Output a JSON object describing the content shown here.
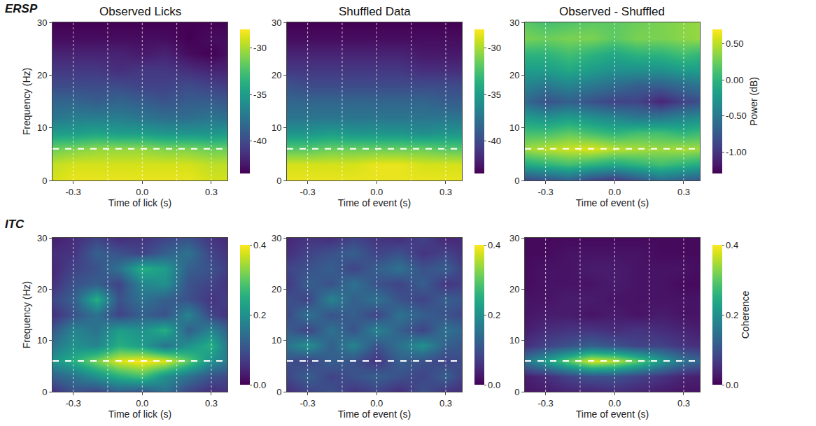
{
  "chart_data": [
    {
      "type": "heatmap",
      "row_label": "ERSP",
      "title": "Observed Licks",
      "x_label": "Time of lick (s)",
      "y_label": "Frequency (Hz)",
      "x": [
        -0.4,
        -0.3,
        -0.2,
        -0.1,
        0,
        0.1,
        0.2,
        0.3,
        0.4
      ],
      "y": [
        0,
        3,
        6,
        9,
        12,
        15,
        18,
        21,
        24,
        27,
        30
      ],
      "z": [
        [
          -29,
          -28.5,
          -28.5,
          -28.5,
          -28.5,
          -28.5,
          -28.5,
          -29,
          -29
        ],
        [
          -29.5,
          -29,
          -29,
          -29,
          -29,
          -29,
          -29,
          -29.5,
          -29.5
        ],
        [
          -31.5,
          -31,
          -30.5,
          -30.5,
          -30.5,
          -31,
          -31,
          -31.5,
          -31.5
        ],
        [
          -35,
          -35,
          -34.5,
          -35,
          -35,
          -35.5,
          -35.5,
          -35.5,
          -35
        ],
        [
          -37.5,
          -37,
          -37,
          -37,
          -37.5,
          -38,
          -38,
          -37.5,
          -38
        ],
        [
          -38.5,
          -38.5,
          -39,
          -38.5,
          -39,
          -39.5,
          -39,
          -39,
          -39.5
        ],
        [
          -40,
          -40,
          -40,
          -40,
          -40.5,
          -40.5,
          -40,
          -40.5,
          -41
        ],
        [
          -41,
          -41,
          -41,
          -41.5,
          -41,
          -41,
          -41.5,
          -42,
          -42
        ],
        [
          -42,
          -42,
          -42,
          -42,
          -42.5,
          -42,
          -43,
          -43.5,
          -42.5
        ],
        [
          -43,
          -43,
          -43,
          -43,
          -43,
          -43,
          -43.5,
          -43,
          -43
        ],
        [
          -43.5,
          -43.5,
          -43.5,
          -43.5,
          -43.5,
          -43.5,
          -43.5,
          -43.5,
          -43.5
        ]
      ],
      "zlim": [
        -43.5,
        -28
      ],
      "zticks": [
        -40,
        -35,
        -30
      ],
      "xlim": [
        -0.39,
        0.37
      ],
      "xticks": [
        -0.3,
        {
          "value": 0,
          "label": "0.0"
        },
        0.3
      ],
      "ylim": [
        0,
        30
      ],
      "yticks": [
        0,
        10,
        20,
        30
      ],
      "hline": 6,
      "vlines": [
        -0.3,
        -0.15,
        0,
        0.15,
        0.3
      ]
    },
    {
      "type": "heatmap",
      "title": "Shuffled Data",
      "x_label": "Time of event (s)",
      "x": [
        -0.4,
        -0.3,
        -0.2,
        -0.1,
        0,
        0.1,
        0.2,
        0.3,
        0.4
      ],
      "y": [
        0,
        3,
        6,
        9,
        12,
        15,
        18,
        21,
        24,
        27,
        30
      ],
      "z": [
        [
          -28.5,
          -28.5,
          -28.5,
          -28.5,
          -28.5,
          -28.5,
          -28.5,
          -28.5,
          -28.5
        ],
        [
          -29,
          -29,
          -29,
          -29,
          -28.5,
          -28.5,
          -29,
          -29,
          -29
        ],
        [
          -32,
          -32,
          -31.5,
          -31.5,
          -31.5,
          -31.5,
          -31.5,
          -32,
          -32
        ],
        [
          -35.5,
          -35.5,
          -35,
          -35.5,
          -35.5,
          -35.5,
          -36,
          -35.5,
          -35.5
        ],
        [
          -37.5,
          -37.5,
          -37.5,
          -37.5,
          -37.5,
          -37.5,
          -37.5,
          -37.5,
          -37.5
        ],
        [
          -38.5,
          -38.5,
          -38.5,
          -38.5,
          -38.5,
          -38.5,
          -38.5,
          -39,
          -39
        ],
        [
          -39.5,
          -40,
          -40,
          -40,
          -40,
          -40,
          -40,
          -40,
          -40
        ],
        [
          -41,
          -41,
          -41,
          -41,
          -41,
          -41,
          -41.5,
          -41.5,
          -41.5
        ],
        [
          -42,
          -42,
          -42,
          -42,
          -42,
          -42,
          -42.5,
          -42.5,
          -42.5
        ],
        [
          -43,
          -43,
          -43,
          -43,
          -43,
          -43,
          -43,
          -43,
          -43
        ],
        [
          -43.5,
          -43.5,
          -43.5,
          -43.5,
          -43.5,
          -43.5,
          -43.5,
          -43.5,
          -43.5
        ]
      ],
      "zlim": [
        -43.5,
        -28
      ],
      "zticks": [
        -40,
        -35,
        -30
      ],
      "xlim": [
        -0.39,
        0.37
      ],
      "xticks": [
        -0.3,
        {
          "value": 0,
          "label": "0.0"
        },
        0.3
      ],
      "ylim": [
        0,
        30
      ],
      "yticks": [
        0,
        10,
        20,
        30
      ],
      "hline": 6,
      "vlines": [
        -0.3,
        -0.15,
        0,
        0.15,
        0.3
      ]
    },
    {
      "type": "heatmap",
      "title": "Observed - Shuffled",
      "x_label": "Time of event (s)",
      "colorbar_title": "Power (dB)",
      "x": [
        -0.4,
        -0.3,
        -0.2,
        -0.1,
        0,
        0.1,
        0.2,
        0.3,
        0.4
      ],
      "y": [
        0,
        3,
        6,
        9,
        12,
        15,
        18,
        21,
        24,
        27,
        30
      ],
      "z": [
        [
          -0.9,
          -0.8,
          -0.7,
          -0.9,
          -1.0,
          -0.8,
          -0.6,
          -0.7,
          -0.8
        ],
        [
          -0.1,
          0.0,
          0.1,
          0.0,
          -0.1,
          0.0,
          0.1,
          0.0,
          -0.1
        ],
        [
          0.4,
          0.5,
          0.55,
          0.6,
          0.5,
          0.45,
          0.4,
          0.45,
          0.4
        ],
        [
          0.1,
          0.1,
          0.2,
          0.1,
          0.0,
          0.1,
          0.1,
          0.0,
          0.1
        ],
        [
          -0.2,
          -0.3,
          -0.2,
          -0.3,
          -0.4,
          -0.5,
          -0.5,
          -0.4,
          -0.3
        ],
        [
          -0.6,
          -0.8,
          -0.7,
          -0.8,
          -0.9,
          -0.9,
          -1.1,
          -0.9,
          -0.8
        ],
        [
          -0.4,
          -0.5,
          -0.4,
          -0.5,
          -0.6,
          -0.7,
          -0.7,
          -0.6,
          -0.5
        ],
        [
          -0.2,
          -0.2,
          -0.1,
          -0.2,
          -0.3,
          -0.3,
          -0.3,
          -0.2,
          -0.2
        ],
        [
          0.0,
          0.0,
          0.1,
          0.0,
          -0.1,
          0.0,
          0.0,
          0.1,
          0.0
        ],
        [
          0.3,
          0.25,
          0.3,
          0.3,
          0.2,
          0.3,
          0.3,
          0.35,
          0.4
        ],
        [
          0.2,
          0.1,
          0.15,
          0.2,
          0.2,
          0.25,
          0.3,
          0.35,
          0.4
        ]
      ],
      "zlim": [
        -1.3,
        0.7
      ],
      "zticks": [
        {
          "value": -1,
          "label": "-1.00"
        },
        {
          "value": -0.5,
          "label": "-0.50"
        },
        {
          "value": 0,
          "label": "0.00"
        },
        {
          "value": 0.5,
          "label": "0.50"
        }
      ],
      "xlim": [
        -0.39,
        0.37
      ],
      "xticks": [
        -0.3,
        {
          "value": 0,
          "label": "0.0"
        },
        0.3
      ],
      "ylim": [
        0,
        30
      ],
      "yticks": [
        0,
        10,
        20,
        30
      ],
      "hline": 6,
      "vlines": [
        -0.3,
        -0.15,
        0,
        0.15,
        0.3
      ]
    },
    {
      "type": "heatmap",
      "row_label": "ITC",
      "x_label": "Time of lick (s)",
      "y_label": "Frequency (Hz)",
      "x": [
        -0.4,
        -0.3,
        -0.2,
        -0.1,
        0,
        0.1,
        0.2,
        0.3,
        0.4
      ],
      "y": [
        0,
        3,
        6,
        9,
        12,
        15,
        18,
        21,
        24,
        27,
        30
      ],
      "z": [
        [
          0.05,
          0.1,
          0.08,
          0.12,
          0.1,
          0.15,
          0.08,
          0.05,
          0.06
        ],
        [
          0.12,
          0.15,
          0.2,
          0.25,
          0.28,
          0.2,
          0.15,
          0.1,
          0.08
        ],
        [
          0.2,
          0.25,
          0.32,
          0.38,
          0.4,
          0.38,
          0.3,
          0.2,
          0.15
        ],
        [
          0.15,
          0.2,
          0.18,
          0.25,
          0.22,
          0.15,
          0.2,
          0.25,
          0.12
        ],
        [
          0.1,
          0.18,
          0.15,
          0.22,
          0.2,
          0.25,
          0.12,
          0.18,
          0.1
        ],
        [
          0.05,
          0.1,
          0.15,
          0.08,
          0.12,
          0.1,
          0.18,
          0.08,
          0.05
        ],
        [
          0.08,
          0.12,
          0.25,
          0.1,
          0.15,
          0.12,
          0.1,
          0.06,
          0.08
        ],
        [
          0.05,
          0.1,
          0.12,
          0.08,
          0.18,
          0.2,
          0.1,
          0.08,
          0.05
        ],
        [
          0.04,
          0.08,
          0.1,
          0.15,
          0.25,
          0.22,
          0.12,
          0.1,
          0.06
        ],
        [
          0.05,
          0.06,
          0.12,
          0.1,
          0.08,
          0.12,
          0.15,
          0.08,
          0.05
        ],
        [
          0.03,
          0.05,
          0.08,
          0.05,
          0.06,
          0.08,
          0.1,
          0.06,
          0.04
        ]
      ],
      "zlim": [
        0,
        0.4
      ],
      "zticks": [
        {
          "value": 0,
          "label": "0.0"
        },
        0.2,
        0.4
      ],
      "xlim": [
        -0.39,
        0.37
      ],
      "xticks": [
        -0.3,
        {
          "value": 0,
          "label": "0.0"
        },
        0.3
      ],
      "ylim": [
        0,
        30
      ],
      "yticks": [
        0,
        10,
        20,
        30
      ],
      "hline": 6,
      "vlines": [
        -0.3,
        -0.15,
        0,
        0.15,
        0.3
      ]
    },
    {
      "type": "heatmap",
      "x_label": "Time of event (s)",
      "x": [
        -0.4,
        -0.3,
        -0.2,
        -0.1,
        0,
        0.1,
        0.2,
        0.3,
        0.4
      ],
      "y": [
        0,
        3,
        6,
        9,
        12,
        15,
        18,
        21,
        24,
        27,
        30
      ],
      "z": [
        [
          0.05,
          0.08,
          0.1,
          0.06,
          0.08,
          0.05,
          0.1,
          0.06,
          0.05
        ],
        [
          0.08,
          0.12,
          0.08,
          0.1,
          0.12,
          0.1,
          0.08,
          0.12,
          0.06
        ],
        [
          0.1,
          0.08,
          0.12,
          0.1,
          0.06,
          0.12,
          0.1,
          0.08,
          0.1
        ],
        [
          0.15,
          0.2,
          0.12,
          0.18,
          0.1,
          0.15,
          0.2,
          0.12,
          0.1
        ],
        [
          0.12,
          0.08,
          0.15,
          0.1,
          0.18,
          0.12,
          0.08,
          0.15,
          0.12
        ],
        [
          0.08,
          0.15,
          0.1,
          0.12,
          0.08,
          0.15,
          0.12,
          0.1,
          0.08
        ],
        [
          0.1,
          0.08,
          0.18,
          0.12,
          0.15,
          0.1,
          0.08,
          0.12,
          0.1
        ],
        [
          0.06,
          0.12,
          0.1,
          0.15,
          0.1,
          0.08,
          0.12,
          0.06,
          0.08
        ],
        [
          0.08,
          0.1,
          0.12,
          0.08,
          0.12,
          0.15,
          0.1,
          0.12,
          0.06
        ],
        [
          0.05,
          0.08,
          0.1,
          0.12,
          0.08,
          0.1,
          0.06,
          0.08,
          0.05
        ],
        [
          0.04,
          0.06,
          0.05,
          0.08,
          0.06,
          0.05,
          0.08,
          0.04,
          0.05
        ]
      ],
      "zlim": [
        0,
        0.4
      ],
      "zticks": [
        {
          "value": 0,
          "label": "0.0"
        },
        0.2,
        0.4
      ],
      "xlim": [
        -0.39,
        0.37
      ],
      "xticks": [
        -0.3,
        {
          "value": 0,
          "label": "0.0"
        },
        0.3
      ],
      "ylim": [
        0,
        30
      ],
      "yticks": [
        0,
        10,
        20,
        30
      ],
      "hline": 6,
      "vlines": [
        -0.3,
        -0.15,
        0,
        0.15,
        0.3
      ]
    },
    {
      "type": "heatmap",
      "x_label": "Time of event (s)",
      "colorbar_title": "Coherence",
      "x": [
        -0.4,
        -0.3,
        -0.2,
        -0.1,
        0,
        0.1,
        0.2,
        0.3,
        0.4
      ],
      "y": [
        0,
        3,
        6,
        9,
        12,
        15,
        18,
        21,
        24,
        27,
        30
      ],
      "z": [
        [
          0.02,
          0.03,
          0.04,
          0.04,
          0.05,
          0.04,
          0.03,
          0.02,
          0.02
        ],
        [
          0.03,
          0.05,
          0.08,
          0.1,
          0.1,
          0.08,
          0.06,
          0.04,
          0.03
        ],
        [
          0.15,
          0.22,
          0.3,
          0.38,
          0.36,
          0.3,
          0.22,
          0.15,
          0.12
        ],
        [
          0.05,
          0.08,
          0.1,
          0.12,
          0.1,
          0.08,
          0.08,
          0.06,
          0.05
        ],
        [
          0.03,
          0.05,
          0.06,
          0.06,
          0.05,
          0.06,
          0.05,
          0.04,
          0.03
        ],
        [
          0.02,
          0.03,
          0.03,
          0.02,
          0.03,
          0.02,
          0.03,
          0.02,
          0.02
        ],
        [
          0.02,
          0.02,
          0.03,
          0.03,
          0.02,
          0.02,
          0.02,
          0.02,
          0.02
        ],
        [
          0.01,
          0.02,
          0.02,
          0.02,
          0.03,
          0.02,
          0.02,
          0.01,
          0.01
        ],
        [
          0.01,
          0.02,
          0.02,
          0.03,
          0.03,
          0.02,
          0.02,
          0.02,
          0.01
        ],
        [
          0.01,
          0.01,
          0.02,
          0.02,
          0.02,
          0.02,
          0.01,
          0.01,
          0.01
        ],
        [
          0.01,
          0.01,
          0.01,
          0.01,
          0.01,
          0.01,
          0.01,
          0.01,
          0.01
        ]
      ],
      "zlim": [
        0,
        0.4
      ],
      "zticks": [
        {
          "value": 0,
          "label": "0.0"
        },
        0.2,
        0.4
      ],
      "xlim": [
        -0.39,
        0.37
      ],
      "xticks": [
        -0.3,
        {
          "value": 0,
          "label": "0.0"
        },
        0.3
      ],
      "ylim": [
        0,
        30
      ],
      "yticks": [
        0,
        10,
        20,
        30
      ],
      "hline": 6,
      "vlines": [
        -0.3,
        -0.15,
        0,
        0.15,
        0.3
      ]
    }
  ]
}
